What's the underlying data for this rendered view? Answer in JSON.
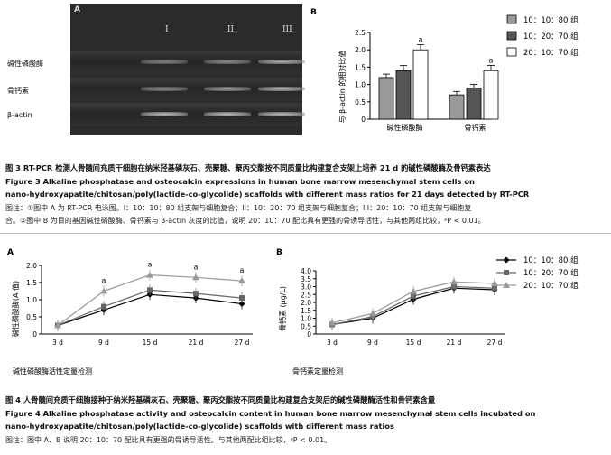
{
  "fig3": {
    "panel_a": {
      "letter": "A",
      "lanes": [
        "I",
        "II",
        "III"
      ],
      "rows": [
        "碱性磷酸酶",
        "骨钙素",
        "β-actin"
      ],
      "band_intensity": [
        [
          0.55,
          0.6,
          0.8
        ],
        [
          0.6,
          0.7,
          0.85
        ],
        [
          0.9,
          0.9,
          0.9
        ]
      ]
    },
    "panel_b": {
      "letter": "B",
      "ylabel": "与 β-actin 的相对比值",
      "legend": [
        "10：10：80 组",
        "10：20：70 组",
        "20：10：70 组"
      ],
      "colors": [
        "#9a9a9a",
        "#555555",
        "#ffffff"
      ],
      "chart_data": {
        "type": "bar",
        "categories": [
          "碱性磷酸酶",
          "骨钙素"
        ],
        "series": [
          {
            "name": "10：10：80 组",
            "values": [
              1.2,
              0.7
            ]
          },
          {
            "name": "10：20：70 组",
            "values": [
              1.4,
              0.9
            ]
          },
          {
            "name": "20：10：70 组",
            "values": [
              2.0,
              1.4
            ]
          }
        ],
        "errors": [
          [
            0.1,
            0.1
          ],
          [
            0.15,
            0.1
          ],
          [
            0.15,
            0.15
          ]
        ],
        "ylim": [
          0,
          2.5
        ],
        "yticks": [
          "0",
          "0.5",
          "1.0",
          "1.5",
          "2.0",
          "2.5"
        ],
        "annotation": "a"
      }
    },
    "caption_cn": "图 3   RT-PCR 检测人骨髓间充质干细胞在纳米羟基磷灰石、壳聚糖、聚丙交酯按不同质量比构建复合支架上培养 21 d 的碱性磷酸酶及骨钙素表达",
    "caption_en1": "Figure 3    Alkaline phosphatase and osteocalcin expressions in human bone marrow mesenchymal stem cells on",
    "caption_en2": "nano-hydroxyapatite/chitosan/poly(lactide-co-glycolide) scaffolds with different mass ratios for 21 days detected by RT-PCR",
    "note1": "图注：①图中 A 为 RT-PCR 电泳图。I：10：10：80 组支架与细胞复合；II：10：20：70 组支架与细胞复合；III：20：10：70 组支架与细胞复",
    "note2": "合。②图中 B 为目的基因碱性磷酸酶、骨钙素与 β-actin 灰度的比值，说明 20：10：70 配比具有更强的骨诱导活性，与其他两组比较，ᵃP < 0.01。"
  },
  "fig4": {
    "legend": [
      "10：10：80 组",
      "10：20：70 组",
      "20：10：70 组"
    ],
    "panel_a": {
      "letter": "A",
      "chart_data": {
        "type": "line",
        "x": [
          "3 d",
          "9 d",
          "15 d",
          "21 d",
          "27 d"
        ],
        "ylabel": "碱性磷酸酶(A 值)",
        "xlabel": "碱性磷酸酶活性定量检测",
        "ylim": [
          0,
          2.0
        ],
        "yticks": [
          "0",
          "0.5",
          "1.0",
          "1.5",
          "2.0"
        ],
        "series": [
          {
            "name": "10：10：80 组",
            "values": [
              0.25,
              0.7,
              1.15,
              1.05,
              0.88
            ]
          },
          {
            "name": "10：20：70 组",
            "values": [
              0.25,
              0.8,
              1.28,
              1.18,
              1.05
            ]
          },
          {
            "name": "20：10：70 组",
            "values": [
              0.25,
              1.25,
              1.72,
              1.65,
              1.55
            ]
          }
        ],
        "annotation": "a"
      }
    },
    "panel_b": {
      "letter": "B",
      "chart_data": {
        "type": "line",
        "x": [
          "3 d",
          "9 d",
          "15 d",
          "21 d",
          "27 d"
        ],
        "ylabel": "骨钙素 (μg/L)",
        "xlabel": "骨钙素定量检测",
        "ylim": [
          0,
          4.0
        ],
        "yticks": [
          "0",
          "0.5",
          "1.0",
          "1.5",
          "2.0",
          "2.5",
          "3.0",
          "3.5",
          "4.0"
        ],
        "series": [
          {
            "name": "10：10：80 组",
            "values": [
              0.6,
              1.0,
              2.2,
              2.9,
              2.8
            ]
          },
          {
            "name": "10：20：70 组",
            "values": [
              0.6,
              1.1,
              2.4,
              3.0,
              2.9
            ]
          },
          {
            "name": "20：10：70 组",
            "values": [
              0.7,
              1.3,
              2.7,
              3.3,
              3.2
            ]
          }
        ],
        "annotation": "a"
      }
    },
    "caption_cn": "图 4   人骨髓间充质干细胞接种于纳米羟基磷灰石、壳聚糖、聚丙交酯按不同质量比构建复合支架后的碱性磷酸酶活性和骨钙素含量",
    "caption_en1": "Figure 4    Alkaline phosphatase activity and osteocalcin content in human bone marrow mesenchymal stem cells incubated on",
    "caption_en2": "nano-hydroxyapatite/chitosan/poly(lactide-co-glycolide) scaffolds with different mass ratios",
    "note": "图注：图中 A、B 说明 20：10：70 配比具有更强的骨诱导活性。与其他两配比组比较，ᵃP < 0.01。"
  }
}
